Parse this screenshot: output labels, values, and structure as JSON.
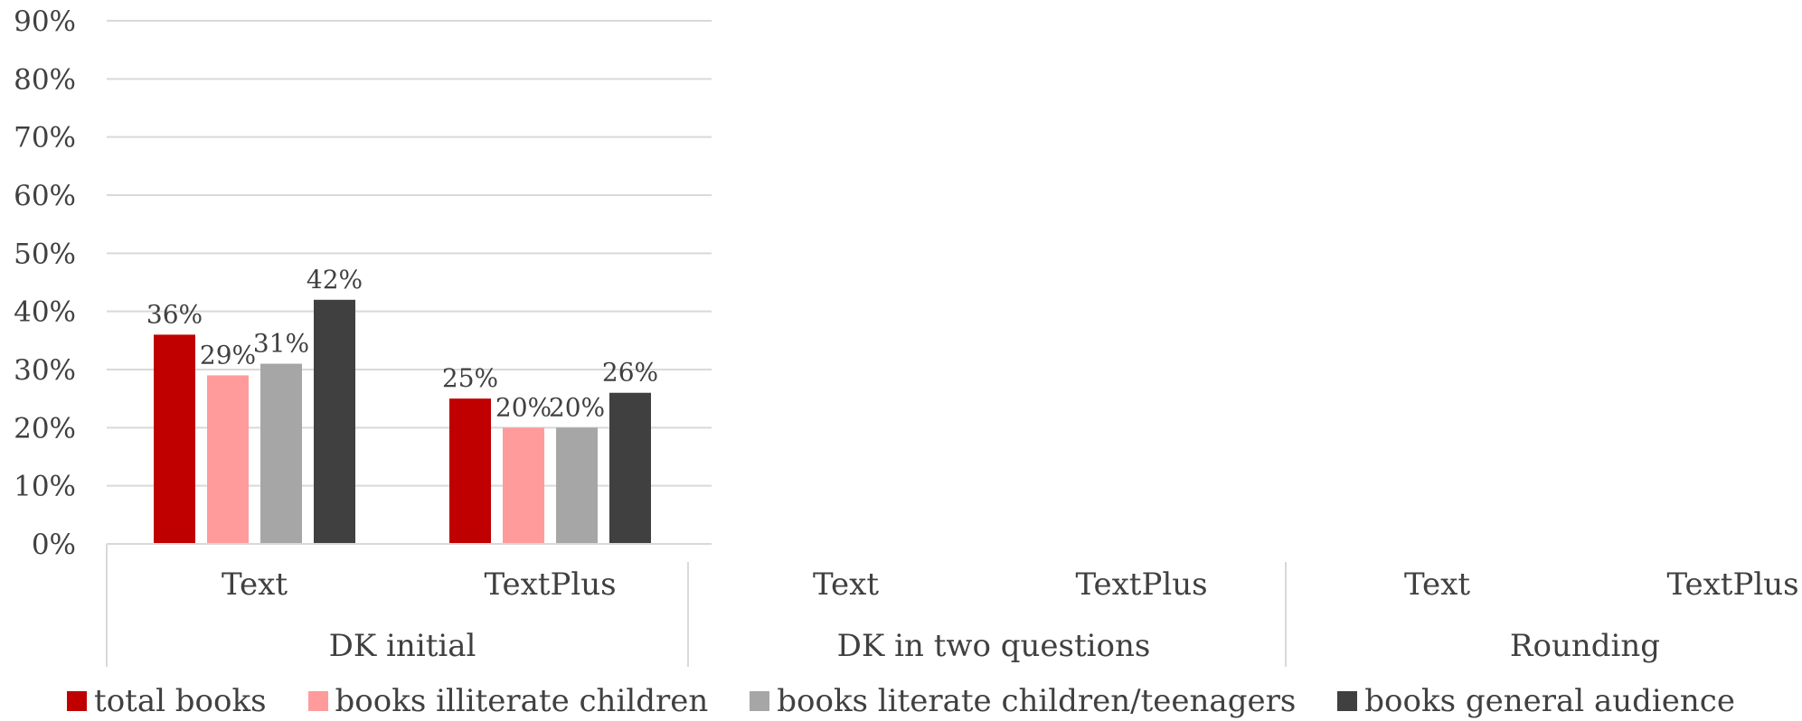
{
  "chart_data": {
    "type": "bar",
    "title": "",
    "xlabel": "",
    "ylabel": "",
    "ylim": [
      0,
      90
    ],
    "yticks": [
      "0%",
      "10%",
      "20%",
      "30%",
      "40%",
      "50%",
      "60%",
      "70%",
      "80%",
      "90%"
    ],
    "grid": true,
    "legend_position": "bottom",
    "groups": [
      {
        "label": "DK initial",
        "categories": [
          "Text",
          "TextPlus"
        ]
      },
      {
        "label": "DK in two questions",
        "categories": [
          "Text",
          "TextPlus"
        ]
      },
      {
        "label": "Rounding",
        "categories": [
          "Text",
          "TextPlus"
        ]
      }
    ],
    "series": [
      {
        "name": "total books",
        "color": "#C00000",
        "values": [
          36,
          25,
          null,
          null,
          null,
          null
        ],
        "labels": [
          "36%",
          "25%",
          "",
          "",
          "",
          ""
        ]
      },
      {
        "name": "books illiterate children",
        "color": "#FF9B9B",
        "values": [
          29,
          20,
          null,
          null,
          null,
          null
        ],
        "labels": [
          "29%",
          "20%",
          "",
          "",
          "",
          ""
        ]
      },
      {
        "name": "books literate children/teenagers",
        "color": "#A6A6A6",
        "values": [
          31,
          20,
          null,
          null,
          null,
          null
        ],
        "labels": [
          "31%",
          "20%",
          "",
          "",
          "",
          ""
        ]
      },
      {
        "name": "books general audience",
        "color": "#404040",
        "values": [
          42,
          26,
          null,
          null,
          null,
          null
        ],
        "labels": [
          "42%",
          "26%",
          "",
          "",
          "",
          ""
        ]
      }
    ]
  }
}
